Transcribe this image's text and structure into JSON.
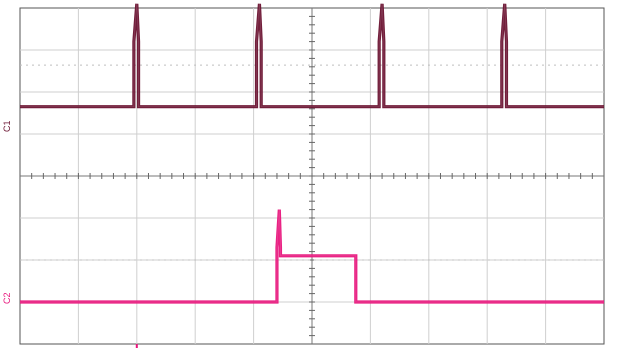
{
  "chart_data": {
    "type": "line",
    "title": "",
    "xlabel": "",
    "ylabel": "",
    "grid": true,
    "xlim": [
      0,
      10
    ],
    "ylim": [
      -4,
      4
    ],
    "series": [
      {
        "label": "C1",
        "color": "#6a1230",
        "baseline": 1.65,
        "pulse_height": 2.5,
        "pulse_top_width": 0.18,
        "pulse_centers": [
          2.0,
          4.1,
          6.2,
          8.3
        ],
        "points": [
          [
            0.0,
            1.65
          ],
          [
            1.95,
            1.65
          ],
          [
            1.95,
            3.2
          ],
          [
            2.0,
            4.1
          ],
          [
            2.03,
            3.2
          ],
          [
            2.03,
            1.65
          ],
          [
            4.05,
            1.65
          ],
          [
            4.05,
            3.2
          ],
          [
            4.1,
            4.1
          ],
          [
            4.13,
            3.2
          ],
          [
            4.13,
            1.65
          ],
          [
            6.15,
            1.65
          ],
          [
            6.15,
            3.2
          ],
          [
            6.2,
            4.1
          ],
          [
            6.23,
            3.2
          ],
          [
            6.23,
            1.65
          ],
          [
            8.25,
            1.65
          ],
          [
            8.25,
            3.2
          ],
          [
            8.3,
            4.1
          ],
          [
            8.33,
            3.2
          ],
          [
            8.33,
            1.65
          ],
          [
            10.0,
            1.65
          ]
        ]
      },
      {
        "label": "C2",
        "color": "#e8157c",
        "points": [
          [
            0.0,
            -3.0
          ],
          [
            4.4,
            -3.0
          ],
          [
            4.4,
            -1.7
          ],
          [
            4.44,
            -0.8
          ],
          [
            4.46,
            -1.7
          ],
          [
            4.46,
            -1.9
          ],
          [
            5.75,
            -1.9
          ],
          [
            5.75,
            -3.0
          ],
          [
            10.0,
            -3.0
          ]
        ]
      }
    ]
  },
  "labels": {
    "ch1": "C1",
    "ch2": "C2"
  }
}
